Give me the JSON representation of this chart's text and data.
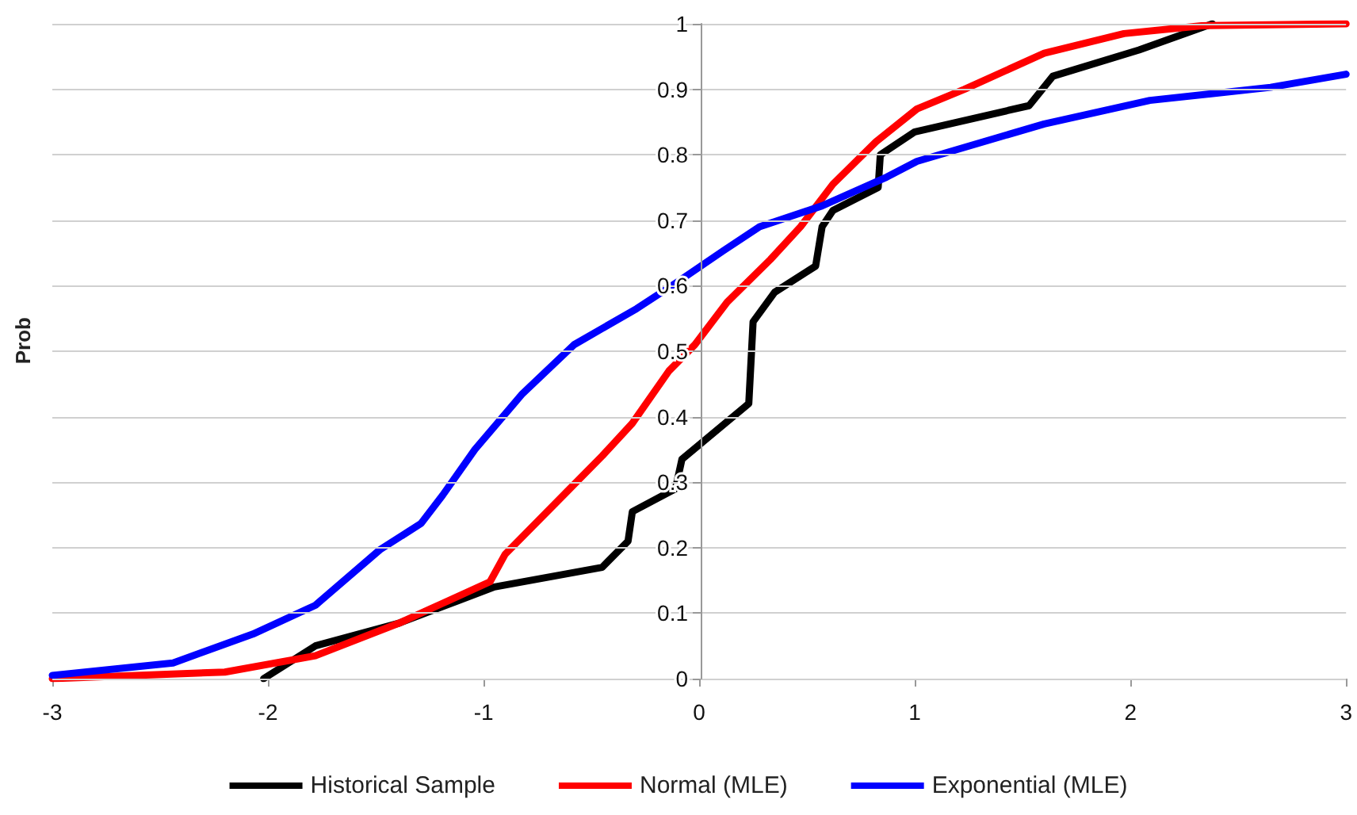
{
  "chart_data": {
    "type": "line",
    "ylabel": "Prob",
    "xlim": [
      -3,
      3
    ],
    "xticks": [
      -3,
      -2,
      -1,
      0,
      1,
      2,
      3
    ],
    "ylim": [
      0,
      1
    ],
    "yticks": [
      0,
      0.1,
      0.2,
      0.3,
      0.4,
      0.5,
      0.6,
      0.7,
      0.8,
      0.9,
      1
    ],
    "grid": "y",
    "legend": "bottom",
    "marker": "none",
    "line_style": "solid",
    "series": [
      {
        "name": "Historical Sample",
        "color": "#000000",
        "x": [
          -2.02,
          -1.78,
          -1.39,
          -1.19,
          -0.95,
          -0.45,
          -0.33,
          -0.31,
          -0.11,
          -0.08,
          0.23,
          0.25,
          0.35,
          0.54,
          0.57,
          0.62,
          0.83,
          0.84,
          1.0,
          1.53,
          1.64,
          2.04,
          2.38
        ],
        "values": [
          0,
          0.05,
          0.085,
          0.11,
          0.14,
          0.17,
          0.21,
          0.255,
          0.29,
          0.335,
          0.42,
          0.545,
          0.59,
          0.63,
          0.69,
          0.715,
          0.75,
          0.8,
          0.835,
          0.875,
          0.92,
          0.96,
          1.0
        ]
      },
      {
        "name": "Normal (MLE)",
        "color": "#ff0000",
        "x": [
          -3.0,
          -2.2,
          -1.78,
          -1.39,
          -1.19,
          -0.97,
          -0.9,
          -0.63,
          -0.45,
          -0.31,
          -0.14,
          -0.02,
          0.13,
          0.33,
          0.47,
          0.62,
          0.82,
          1.01,
          1.23,
          1.6,
          1.97,
          2.33,
          3.0
        ],
        "values": [
          0.0,
          0.01,
          0.035,
          0.085,
          0.115,
          0.148,
          0.19,
          0.28,
          0.34,
          0.39,
          0.47,
          0.51,
          0.575,
          0.64,
          0.69,
          0.755,
          0.82,
          0.87,
          0.9,
          0.955,
          0.985,
          0.997,
          1.0
        ]
      },
      {
        "name": "Exponential (MLE)",
        "color": "#0000ff",
        "x": [
          -3.0,
          -2.44,
          -2.07,
          -1.78,
          -1.48,
          -1.29,
          -1.19,
          -1.04,
          -0.82,
          -0.58,
          -0.29,
          -0.09,
          0.11,
          0.28,
          0.57,
          0.87,
          1.01,
          1.6,
          2.09,
          2.65,
          3.0
        ],
        "values": [
          0.005,
          0.024,
          0.068,
          0.112,
          0.197,
          0.237,
          0.28,
          0.35,
          0.435,
          0.51,
          0.565,
          0.608,
          0.653,
          0.69,
          0.722,
          0.766,
          0.79,
          0.847,
          0.883,
          0.903,
          0.923
        ]
      }
    ]
  }
}
